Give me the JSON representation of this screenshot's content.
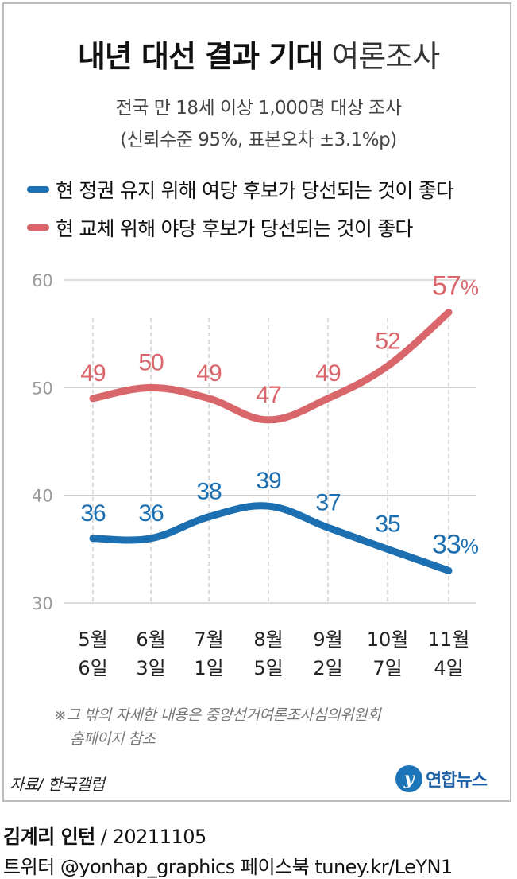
{
  "header": {
    "title_bold": "내년 대선 결과 기대",
    "title_light": "여론조사",
    "subtitle1": "전국 만 18세 이상 1,000명 대상 조사",
    "subtitle2": "(신뢰수준 95%, 표본오차 ±3.1%p)"
  },
  "colors": {
    "blue": "#1c6fb1",
    "red": "#d9666b",
    "grid": "#c8c8c8"
  },
  "chart_data": {
    "type": "line",
    "categories": [
      "5월 6일",
      "6월 3일",
      "7월 1일",
      "8월 5일",
      "9월 2일",
      "10월 7일",
      "11월 4일"
    ],
    "category_lines": [
      [
        "5월",
        "6일"
      ],
      [
        "6월",
        "3일"
      ],
      [
        "7월",
        "1일"
      ],
      [
        "8월",
        "5일"
      ],
      [
        "9월",
        "2일"
      ],
      [
        "10월",
        "7일"
      ],
      [
        "11월",
        "4일"
      ]
    ],
    "ylim": [
      30,
      60
    ],
    "yticks": [
      "30",
      "40",
      "50",
      "60"
    ],
    "grid": true,
    "legend_position": "top-left",
    "series": [
      {
        "name": "현 정권 유지 위해 여당 후보가 당선되는 것이 좋다",
        "color": "#1c6fb1",
        "values": [
          36,
          36,
          38,
          39,
          37,
          35,
          33
        ],
        "labels": [
          "36",
          "36",
          "38",
          "39",
          "37",
          "35",
          "33"
        ]
      },
      {
        "name": "현 교체 위해 야당 후보가 당선되는 것이 좋다",
        "color": "#d9666b",
        "values": [
          49,
          50,
          49,
          47,
          49,
          52,
          57
        ],
        "labels": [
          "49",
          "50",
          "49",
          "47",
          "49",
          "52",
          "57"
        ]
      }
    ],
    "last_label_suffix": "%"
  },
  "notes": {
    "line1": "※그 밖의 자세한 내용은 중앙선거여론조사심의위원회",
    "line2": "홈페이지 참조"
  },
  "source": "자료/ 한국갤럽",
  "logo": {
    "mark": "y",
    "text": "연합뉴스"
  },
  "credit": {
    "name": "김계리 인턴",
    "date": " / 20211105",
    "social": "트위터 @yonhap_graphics  페이스북 tuney.kr/LeYN1"
  }
}
